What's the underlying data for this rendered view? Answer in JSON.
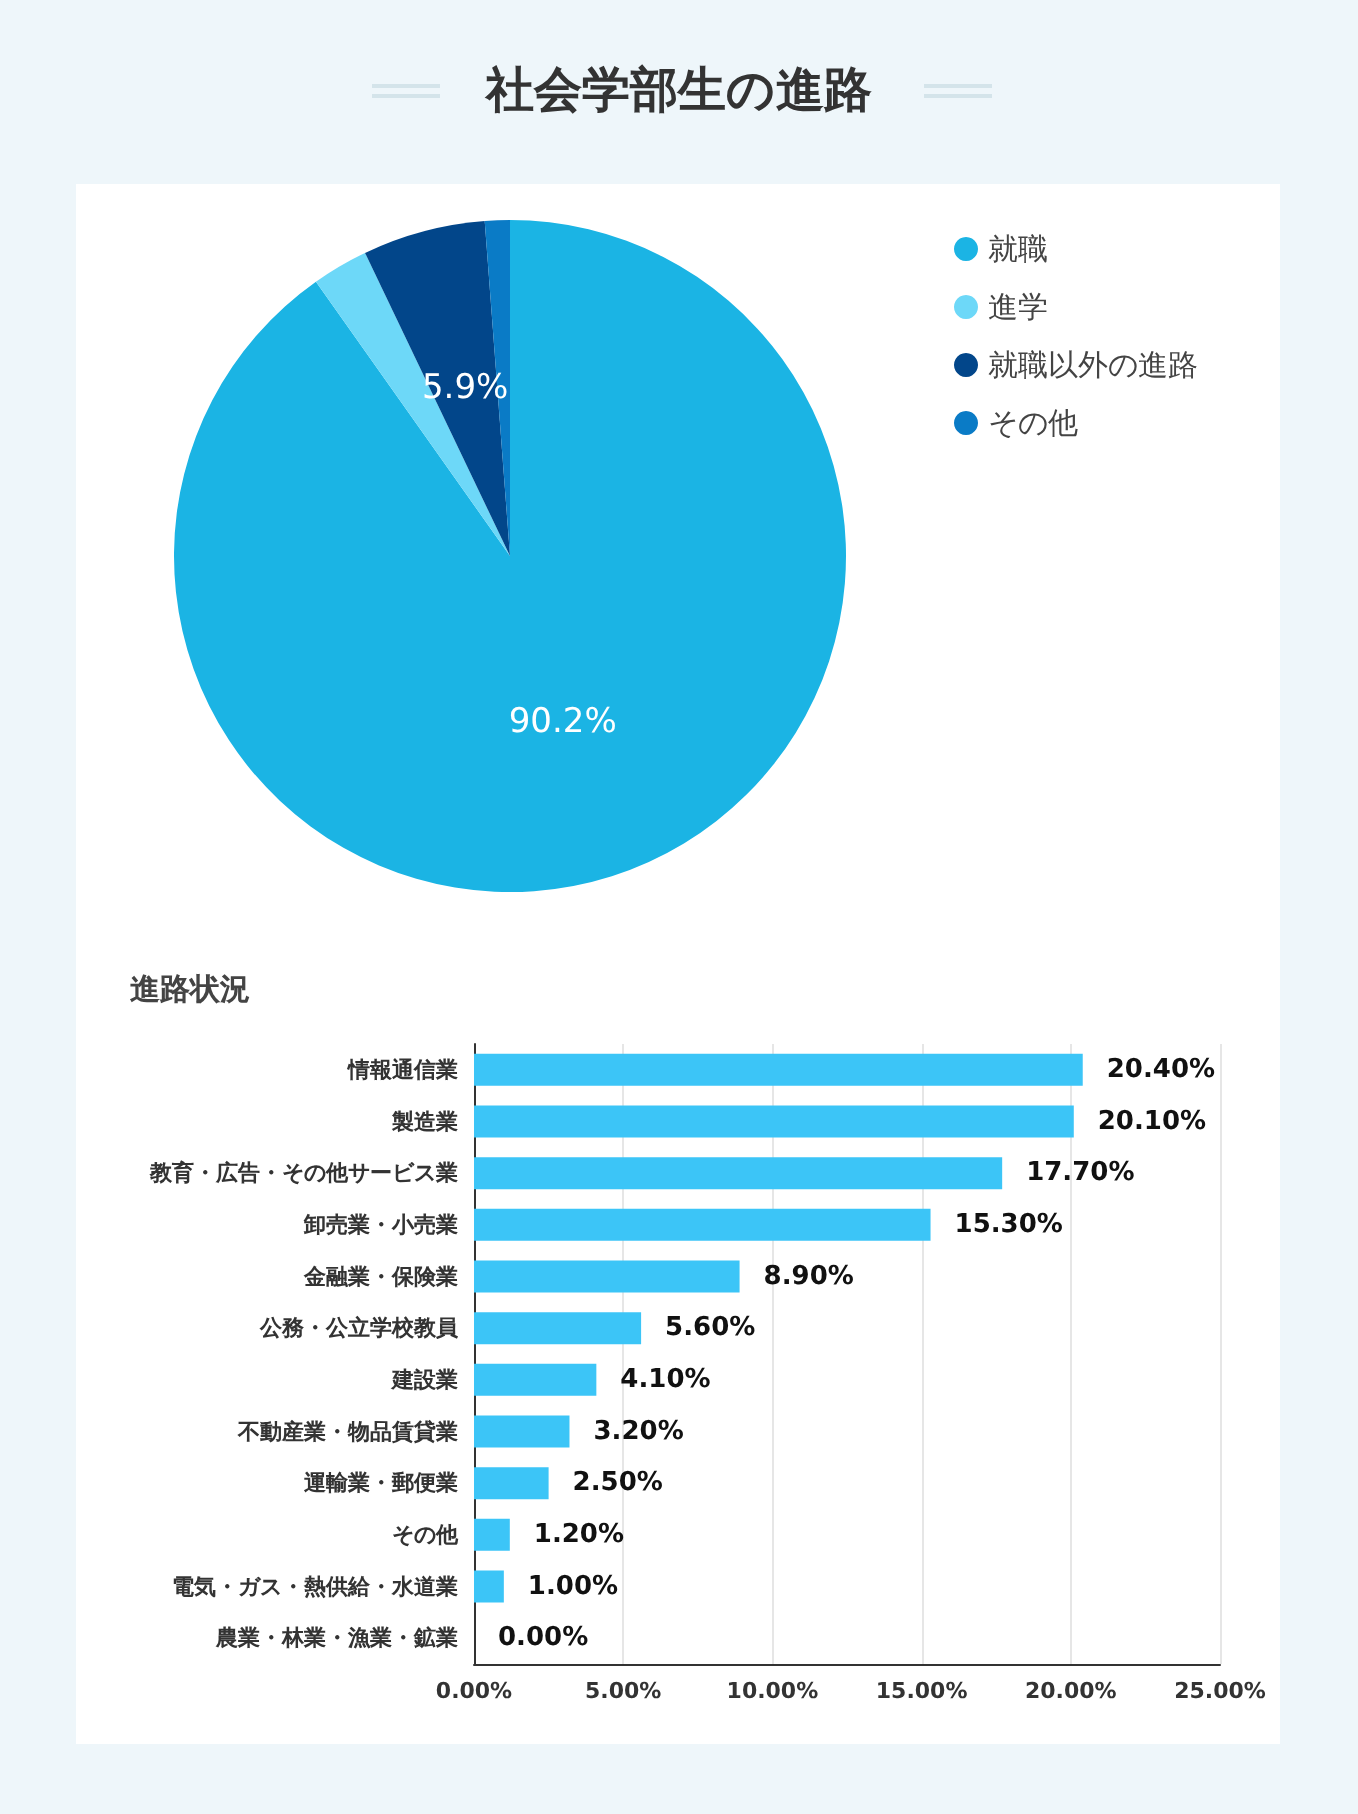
{
  "chart_data": [
    {
      "type": "pie",
      "title": "社会学部生の進路",
      "categories": [
        "就職",
        "進学",
        "就職以外の進路",
        "その他"
      ],
      "values": [
        90.2,
        2.7,
        5.9,
        1.2
      ],
      "colors": [
        "#1bb4e4",
        "#6dd8f8",
        "#02468a",
        "#0a7bc6"
      ],
      "value_labels": [
        "90.2%",
        null,
        "5.9%",
        null
      ],
      "legend": "top right"
    },
    {
      "type": "bar",
      "orientation": "horizontal",
      "title": "進路状況",
      "categories": [
        "情報通信業",
        "製造業",
        "教育・広告・その他サービス業",
        "卸売業・小売業",
        "金融業・保険業",
        "公務・公立学校教員",
        "建設業",
        "不動産業・物品賃貸業",
        "運輸業・郵便業",
        "その他",
        "電気・ガス・熱供給・水道業",
        "農業・林業・漁業・鉱業"
      ],
      "values": [
        20.4,
        20.1,
        17.7,
        15.3,
        8.9,
        5.6,
        4.1,
        3.2,
        2.5,
        1.2,
        1.0,
        0.0
      ],
      "value_labels": [
        "20.40%",
        "20.10%",
        "17.70%",
        "15.30%",
        "8.90%",
        "5.60%",
        "4.10%",
        "3.20%",
        "2.50%",
        "1.20%",
        "1.00%",
        "0.00%"
      ],
      "color": "#3cc5f7",
      "xlim": [
        0,
        25
      ],
      "xticks": [
        {
          "value": 0,
          "label": "0.00%"
        },
        {
          "value": 5,
          "label": "5.00%"
        },
        {
          "value": 10,
          "label": "10.00%"
        },
        {
          "value": 15,
          "label": "15.00%"
        },
        {
          "value": 20,
          "label": "20.00%"
        },
        {
          "value": 25,
          "label": "25.00%"
        }
      ],
      "grid": "x",
      "legend": false
    }
  ]
}
